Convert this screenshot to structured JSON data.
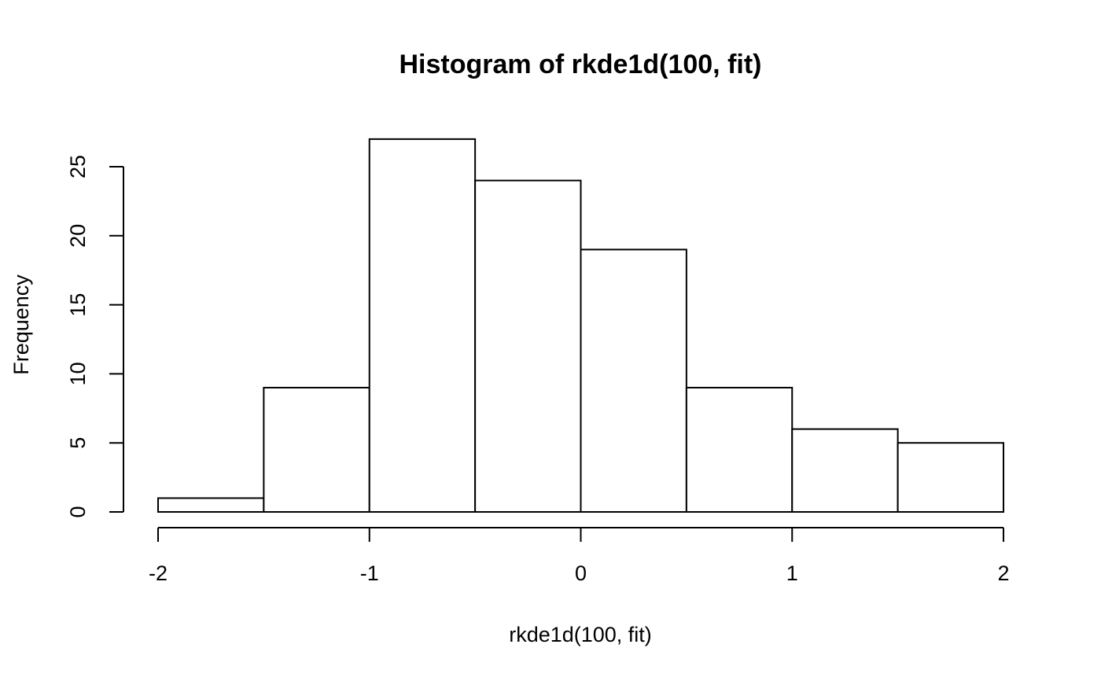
{
  "chart_data": {
    "type": "bar",
    "title": "Histogram of rkde1d(100, fit)",
    "xlabel": "rkde1d(100, fit)",
    "ylabel": "Frequency",
    "bins": [
      {
        "from": -2.0,
        "to": -1.5,
        "count": 1
      },
      {
        "from": -1.5,
        "to": -1.0,
        "count": 9
      },
      {
        "from": -1.0,
        "to": -0.5,
        "count": 27
      },
      {
        "from": -0.5,
        "to": 0.0,
        "count": 24
      },
      {
        "from": 0.0,
        "to": 0.5,
        "count": 19
      },
      {
        "from": 0.5,
        "to": 1.0,
        "count": 9
      },
      {
        "from": 1.0,
        "to": 1.5,
        "count": 6
      },
      {
        "from": 1.5,
        "to": 2.0,
        "count": 5
      }
    ],
    "xlim": [
      -2,
      2
    ],
    "ylim": [
      0,
      25
    ],
    "xticks": [
      -2,
      -1,
      0,
      1,
      2
    ],
    "yticks": [
      0,
      5,
      10,
      15,
      20,
      25
    ],
    "xtick_labels": [
      "-2",
      "-1",
      "0",
      "1",
      "2"
    ],
    "ytick_labels": [
      "0",
      "5",
      "10",
      "15",
      "20",
      "25"
    ],
    "grid": false,
    "legend": "none"
  }
}
